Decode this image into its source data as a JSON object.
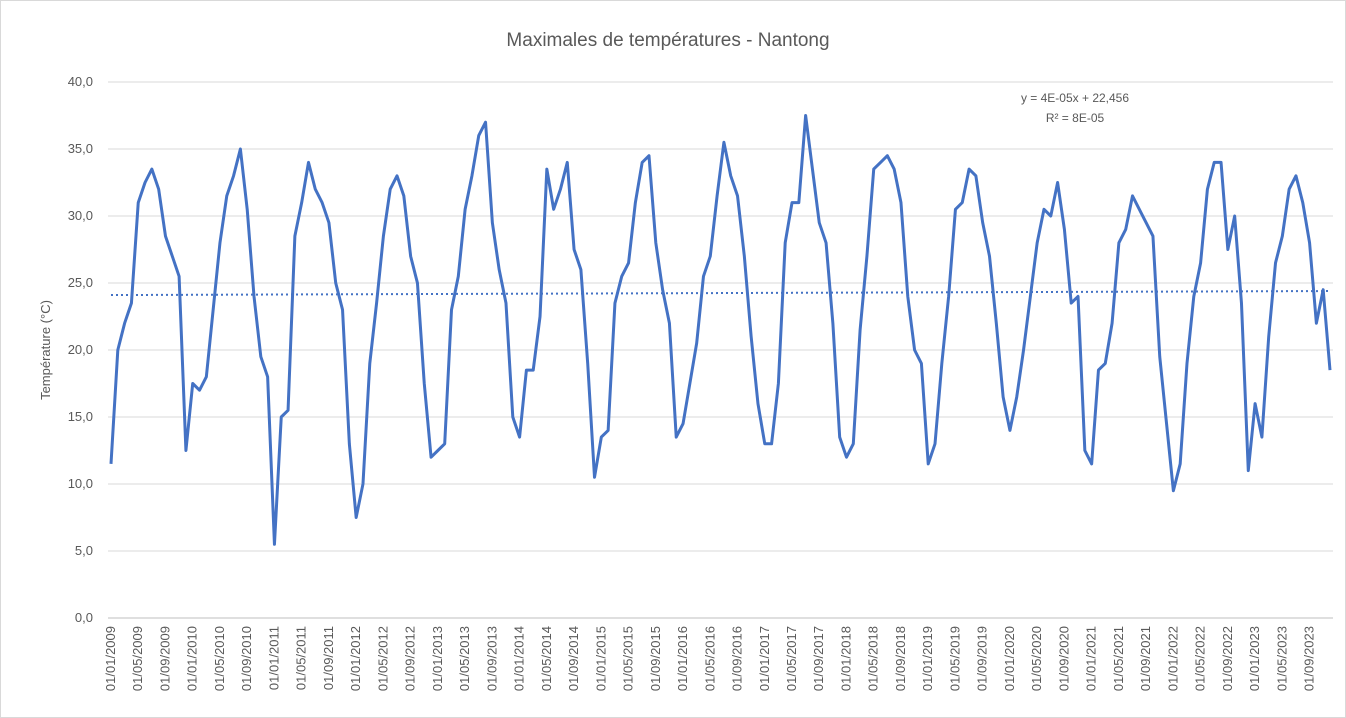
{
  "chart_data": {
    "type": "line",
    "title": "Maximales de températures - Nantong",
    "y_label": "Température (°C)",
    "annotations": [
      "y = 4E-05x + 22,456",
      "R² = 8E-05"
    ],
    "color": "#4472c4",
    "grid": true,
    "categories": [
      "01/01/2009",
      null,
      null,
      null,
      "01/05/2009",
      null,
      null,
      null,
      "01/09/2009",
      null,
      null,
      null,
      "01/01/2010",
      null,
      null,
      null,
      "01/05/2010",
      null,
      null,
      null,
      "01/09/2010",
      null,
      null,
      null,
      "01/01/2011",
      null,
      null,
      null,
      "01/05/2011",
      null,
      null,
      null,
      "01/09/2011",
      null,
      null,
      null,
      "01/01/2012",
      null,
      null,
      null,
      "01/05/2012",
      null,
      null,
      null,
      "01/09/2012",
      null,
      null,
      null,
      "01/01/2013",
      null,
      null,
      null,
      "01/05/2013",
      null,
      null,
      null,
      "01/09/2013",
      null,
      null,
      null,
      "01/01/2014",
      null,
      null,
      null,
      "01/05/2014",
      null,
      null,
      null,
      "01/09/2014",
      null,
      null,
      null,
      "01/01/2015",
      null,
      null,
      null,
      "01/05/2015",
      null,
      null,
      null,
      "01/09/2015",
      null,
      null,
      null,
      "01/01/2016",
      null,
      null,
      null,
      "01/05/2016",
      null,
      null,
      null,
      "01/09/2016",
      null,
      null,
      null,
      "01/01/2017",
      null,
      null,
      null,
      "01/05/2017",
      null,
      null,
      null,
      "01/09/2017",
      null,
      null,
      null,
      "01/01/2018",
      null,
      null,
      null,
      "01/05/2018",
      null,
      null,
      null,
      "01/09/2018",
      null,
      null,
      null,
      "01/01/2019",
      null,
      null,
      null,
      "01/05/2019",
      null,
      null,
      null,
      "01/09/2019",
      null,
      null,
      null,
      "01/01/2020",
      null,
      null,
      null,
      "01/05/2020",
      null,
      null,
      null,
      "01/09/2020",
      null,
      null,
      null,
      "01/01/2021",
      null,
      null,
      null,
      "01/05/2021",
      null,
      null,
      null,
      "01/09/2021",
      null,
      null,
      null,
      "01/01/2022",
      null,
      null,
      null,
      "01/05/2022",
      null,
      null,
      null,
      "01/09/2022",
      null,
      null,
      null,
      "01/01/2023",
      null,
      null,
      null,
      "01/05/2023",
      null,
      null,
      null,
      "01/09/2023",
      null,
      null,
      null
    ],
    "values": [
      11.5,
      20,
      22,
      23.5,
      31,
      32.5,
      33.5,
      32,
      28.5,
      27,
      25.5,
      12.5,
      17.5,
      17,
      18,
      23,
      28,
      31.5,
      33,
      35,
      30.5,
      24,
      19.5,
      18,
      5.5,
      15,
      15.5,
      28.5,
      31,
      34,
      32,
      31,
      29.5,
      25,
      23,
      13,
      7.5,
      10,
      19,
      23.5,
      28.5,
      32,
      33,
      31.5,
      27,
      25,
      17.5,
      12,
      12.5,
      13,
      23,
      25.5,
      30.5,
      33,
      36,
      37,
      29.5,
      26,
      23.5,
      15,
      13.5,
      18.5,
      18.5,
      22.5,
      33.5,
      30.5,
      32,
      34,
      27.5,
      26,
      19,
      10.5,
      13.5,
      14,
      23.5,
      25.5,
      26.5,
      31,
      34,
      34.5,
      28,
      24.5,
      22,
      13.5,
      14.5,
      17.5,
      20.5,
      25.5,
      27,
      31.5,
      35.5,
      33,
      31.5,
      27,
      21,
      16,
      13,
      13,
      17.5,
      28,
      31,
      31,
      37.5,
      33.5,
      29.5,
      28,
      22,
      13.5,
      12,
      13,
      21.5,
      27,
      33.5,
      34,
      34.5,
      33.5,
      31,
      24,
      20,
      19,
      11.5,
      13,
      19,
      24,
      30.5,
      31,
      33.5,
      33,
      29.5,
      27,
      22,
      16.5,
      14,
      16.5,
      20,
      24,
      28,
      30.5,
      30,
      32.5,
      29,
      23.5,
      24,
      12.5,
      11.5,
      18.5,
      19,
      22,
      28,
      29,
      31.5,
      30.5,
      29.5,
      28.5,
      19.5,
      14.5,
      9.5,
      11.5,
      19,
      24,
      26.5,
      32,
      34,
      34,
      27.5,
      30,
      23.5,
      11,
      16,
      13.5,
      21,
      26.5,
      28.5,
      32,
      33,
      31,
      28,
      22,
      24.5,
      18.5
    ],
    "trendline": {
      "values": [
        24.1,
        24.4
      ],
      "style": "dotted"
    },
    "ylim": [
      0,
      40
    ],
    "yticks": [
      {
        "value": 0,
        "label": "0,0"
      },
      {
        "value": 5,
        "label": "5,0"
      },
      {
        "value": 10,
        "label": "10,0"
      },
      {
        "value": 15,
        "label": "15,0"
      },
      {
        "value": 20,
        "label": "20,0"
      },
      {
        "value": 25,
        "label": "25,0"
      },
      {
        "value": 30,
        "label": "30,0"
      },
      {
        "value": 35,
        "label": "35,0"
      },
      {
        "value": 40,
        "label": "40,0"
      }
    ]
  }
}
